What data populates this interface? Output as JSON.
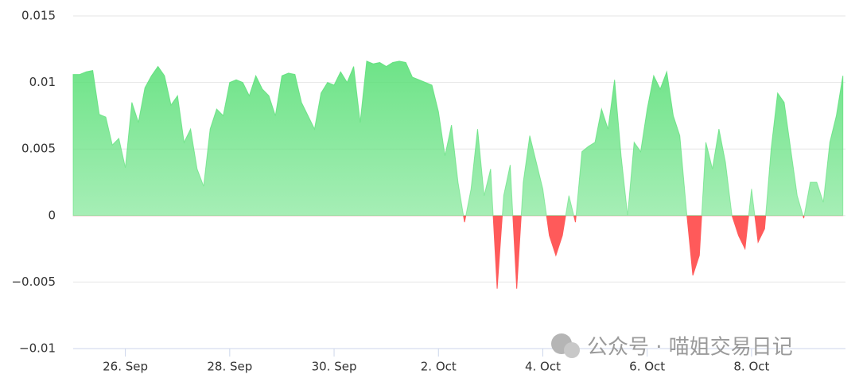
{
  "chart_data": {
    "type": "area",
    "x": [
      25,
      25.125,
      25.25,
      25.375,
      25.5,
      25.625,
      25.75,
      25.875,
      26,
      26.125,
      26.25,
      26.375,
      26.5,
      26.625,
      26.75,
      26.875,
      27,
      27.125,
      27.25,
      27.375,
      27.5,
      27.625,
      27.75,
      27.875,
      28,
      28.125,
      28.25,
      28.375,
      28.5,
      28.625,
      28.75,
      28.875,
      29,
      29.125,
      29.25,
      29.375,
      29.5,
      29.625,
      29.75,
      29.875,
      30,
      30.125,
      30.25,
      30.375,
      30.5,
      30.625,
      30.75,
      30.875,
      31,
      31.125,
      31.25,
      31.375,
      31.5,
      31.625,
      31.75,
      31.875,
      32,
      32.125,
      32.25,
      32.375,
      32.5,
      32.625,
      32.75,
      32.875,
      33,
      33.125,
      33.25,
      33.375,
      33.5,
      33.625,
      33.75,
      33.875,
      34,
      34.125,
      34.25,
      34.375,
      34.5,
      34.625,
      34.75,
      34.875,
      35,
      35.125,
      35.25,
      35.375,
      35.5,
      35.625,
      35.75,
      35.875,
      36,
      36.125,
      36.25,
      36.375,
      36.5,
      36.625,
      36.75,
      36.875,
      37,
      37.125,
      37.25,
      37.375,
      37.5,
      37.625,
      37.75,
      37.875,
      38,
      38.125,
      38.25,
      38.375,
      38.5,
      38.625,
      38.75,
      38.875,
      39,
      39.125,
      39.25,
      39.375,
      39.5,
      39.625,
      39.75
    ],
    "values": [
      0.0106,
      0.0106,
      0.0108,
      0.0109,
      0.0076,
      0.0074,
      0.0053,
      0.0058,
      0.0036,
      0.0085,
      0.007,
      0.0096,
      0.0105,
      0.0112,
      0.0105,
      0.0083,
      0.009,
      0.0055,
      0.0065,
      0.0035,
      0.0022,
      0.0065,
      0.008,
      0.0075,
      0.01,
      0.0102,
      0.01,
      0.009,
      0.0105,
      0.0095,
      0.009,
      0.0075,
      0.0105,
      0.0107,
      0.0106,
      0.0085,
      0.0075,
      0.0065,
      0.0092,
      0.01,
      0.0098,
      0.0108,
      0.01,
      0.0112,
      0.007,
      0.0116,
      0.0114,
      0.0115,
      0.0112,
      0.0115,
      0.0116,
      0.0115,
      0.0104,
      0.0102,
      0.01,
      0.0098,
      0.0078,
      0.0045,
      0.0068,
      0.0025,
      -0.0005,
      0.002,
      0.0065,
      0.0015,
      0.0035,
      -0.0055,
      0.0015,
      0.0038,
      -0.0055,
      0.0025,
      0.006,
      0.004,
      0.002,
      -0.0015,
      -0.003,
      -0.0015,
      0.0015,
      -0.0005,
      0.0048,
      0.0052,
      0.0055,
      0.008,
      0.0065,
      0.0102,
      0.0045,
      0,
      0.0055,
      0.0048,
      0.008,
      0.0105,
      0.0095,
      0.0108,
      0.0075,
      0.006,
      0.0005,
      -0.0045,
      -0.003,
      0.0055,
      0.0035,
      0.0065,
      0.004,
      0,
      -0.0015,
      -0.0025,
      0.002,
      -0.002,
      -0.001,
      0.005,
      0.0092,
      0.0085,
      0.005,
      0.0015,
      -0.0002,
      0.0025,
      0.0025,
      0.001,
      0.0055,
      0.0075,
      0.0105
    ],
    "color_positive": "#5de07a",
    "color_negative": "#ff5a5a",
    "xlim": [
      25,
      39.8
    ],
    "xticks": [
      {
        "value": 26,
        "label": "26. Sep"
      },
      {
        "value": 28,
        "label": "28. Sep"
      },
      {
        "value": 30,
        "label": "30. Sep"
      },
      {
        "value": 32,
        "label": "2. Oct"
      },
      {
        "value": 34,
        "label": "4. Oct"
      },
      {
        "value": 36,
        "label": "6. Oct"
      },
      {
        "value": 38,
        "label": "8. Oct"
      }
    ],
    "ylim": [
      -0.01,
      0.015
    ],
    "yticks": [
      0.015,
      0.01,
      0.005,
      0,
      {
        "value": -0.005,
        "label": "−0.005"
      },
      {
        "value": -0.01,
        "label": "−0.01"
      }
    ],
    "grid": true,
    "watermark": "公众号 · 喵姐交易日记"
  }
}
